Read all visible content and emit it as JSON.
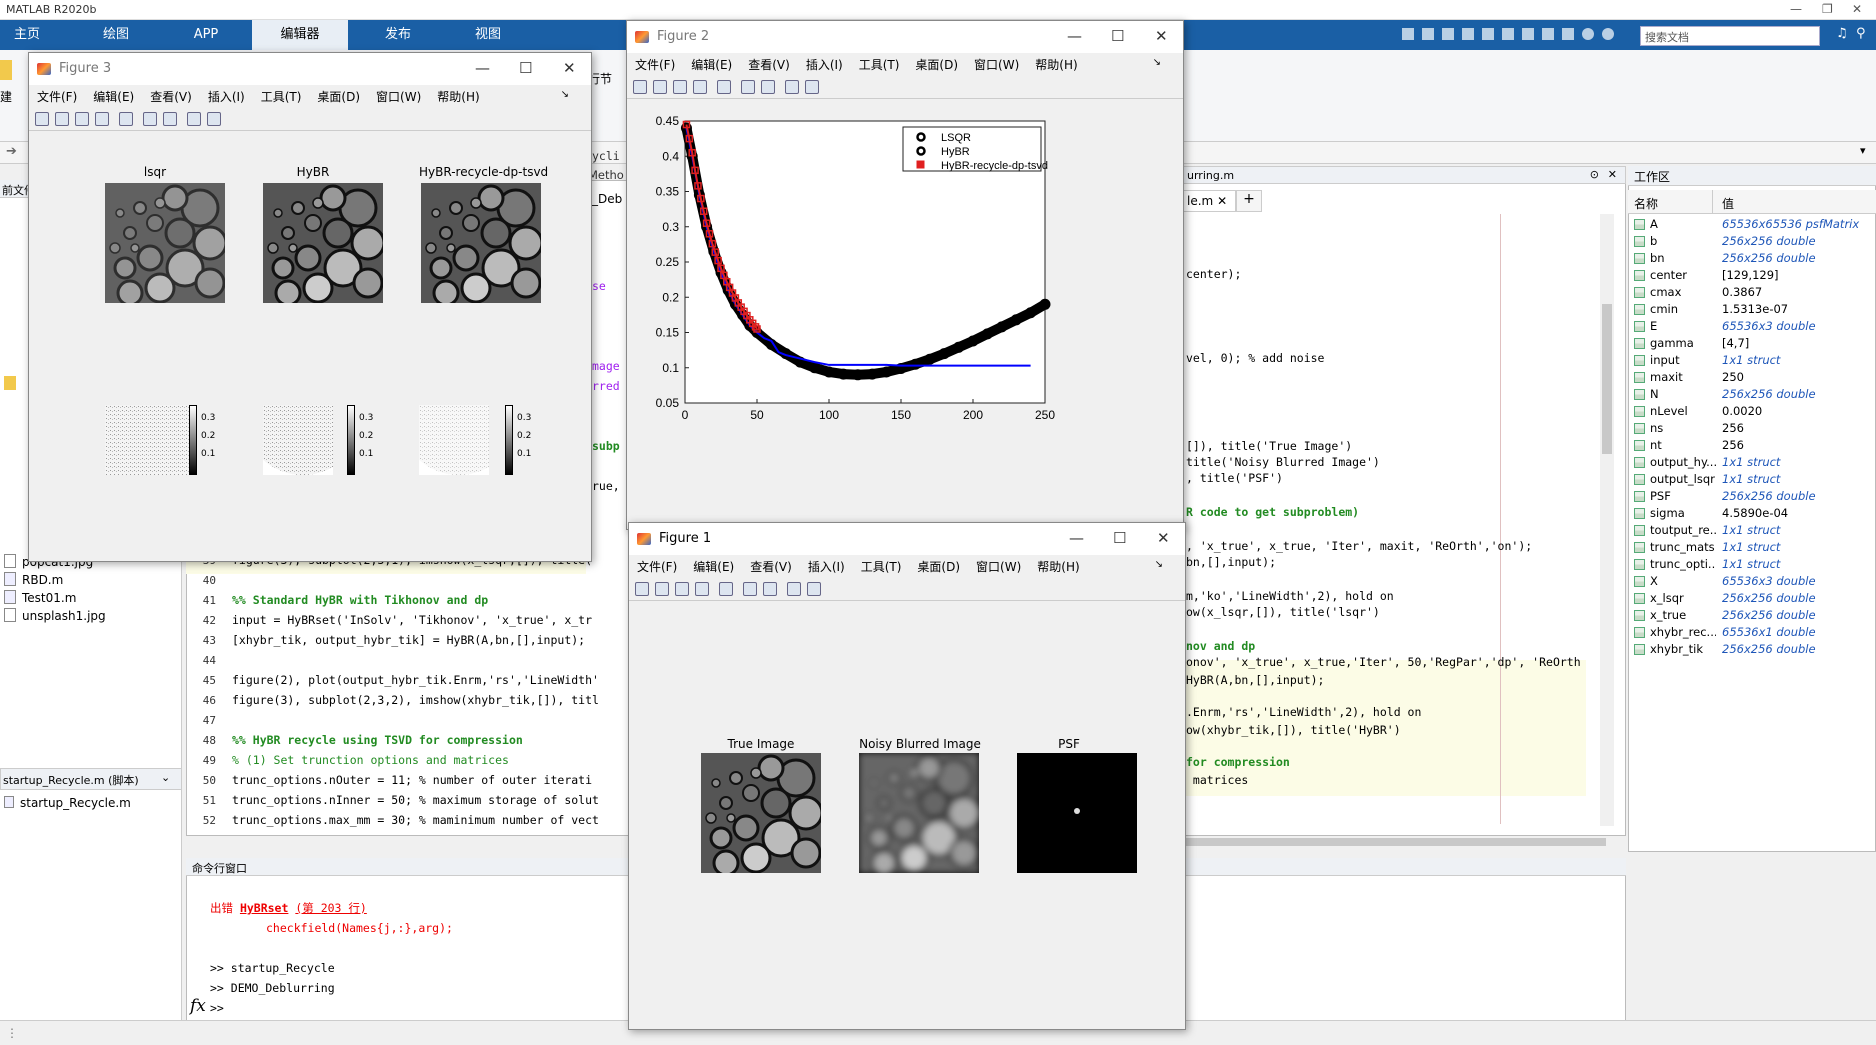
{
  "app": {
    "title": "MATLAB R2020b"
  },
  "ribbon": {
    "tabs": [
      "主页",
      "绘图",
      "APP",
      "编辑器",
      "发布",
      "视图"
    ],
    "search_placeholder": "搜索文档"
  },
  "files": {
    "items": [
      "popcat1.jpg",
      "RBD.m",
      "Test01.m",
      "unsplash1.jpg"
    ],
    "detail_label": "startup_Recycle.m (脚本)",
    "detail_file": "startup_Recycle.m"
  },
  "editor": {
    "tab_fragment": "urring.m",
    "tab_file": "le.m",
    "lines": [
      {
        "n": "39",
        "code": "figure(3), subplot(2,3,1), imshow(x_lsqr,[]), title("
      },
      {
        "n": "40",
        "code": ""
      },
      {
        "n": "41",
        "code": "%% Standard HyBR with Tikhonov and dp"
      },
      {
        "n": "42",
        "code": "input = HyBRset('InSolv', 'Tikhonov', 'x_true', x_tr"
      },
      {
        "n": "43",
        "code": "[xhybr_tik, output_hybr_tik] = HyBR(A,bn,[],input);"
      },
      {
        "n": "44",
        "code": ""
      },
      {
        "n": "45",
        "code": "figure(2), plot(output_hybr_tik.Enrm,'rs','LineWidth'"
      },
      {
        "n": "46",
        "code": "figure(3), subplot(2,3,2), imshow(xhybr_tik,[]), titl"
      },
      {
        "n": "47",
        "code": ""
      },
      {
        "n": "48",
        "code": "%% HyBR recycle using TSVD for compression"
      },
      {
        "n": "49",
        "code": "% (1) Set trunction options and matrices"
      },
      {
        "n": "50",
        "code": "trunc_options.nOuter = 11; % number of outer iterati"
      },
      {
        "n": "51",
        "code": "trunc_options.nInner = 50; % maximum storage of solut"
      },
      {
        "n": "52",
        "code": "trunc_options.max_mm = 30; % maminimum number of vect"
      }
    ],
    "right_fragments": [
      "center);",
      "vel, 0); % add noise",
      "[]), title('True Image')",
      "title('Noisy Blurred Image')",
      ", title('PSF')",
      "R code to get subproblem)",
      ", 'x_true', x_true, 'Iter', maxit, 'ReOrth','on');",
      "bn,[],input);",
      "m,'ko','LineWidth',2), hold on",
      "ow(x_lsqr,[]), title('lsqr')",
      "nov and dp",
      "onov', 'x_true', x_true,'Iter', 50,'RegPar','dp', 'ReOrth",
      "HyBR(A,bn,[],input);",
      ".Enrm,'rs','LineWidth',2), hold on",
      "ow(xhybr_tik,[]), title('HyBR')",
      "for compression",
      " matrices"
    ],
    "left_fragments": [
      "ycli",
      "Metho",
      "_Deb",
      "se",
      "mage",
      "rred",
      "subp",
      "rue,"
    ]
  },
  "command_window": {
    "header": "命令行窗口",
    "error_prefix": "出错 ",
    "error_func": "HyBRset",
    "error_line": "(第 203 行)",
    "error_detail": "checkfield(Names{j,:},arg);",
    "history": [
      ">> startup_Recycle",
      ">> DEMO_Deblurring"
    ],
    "prompt": ">>",
    "fx": "fx"
  },
  "workspace": {
    "title": "工作区",
    "col_name": "名称",
    "col_value": "值",
    "vars": [
      {
        "name": "A",
        "value": "65536x65536 psfMatrix",
        "italic": true
      },
      {
        "name": "b",
        "value": "256x256 double",
        "italic": true
      },
      {
        "name": "bn",
        "value": "256x256 double",
        "italic": true
      },
      {
        "name": "center",
        "value": "[129,129]",
        "italic": false
      },
      {
        "name": "cmax",
        "value": "0.3867",
        "italic": false
      },
      {
        "name": "cmin",
        "value": "1.5313e-07",
        "italic": false
      },
      {
        "name": "E",
        "value": "65536x3 double",
        "italic": true
      },
      {
        "name": "gamma",
        "value": "[4,7]",
        "italic": false
      },
      {
        "name": "input",
        "value": "1x1 struct",
        "italic": true
      },
      {
        "name": "maxit",
        "value": "250",
        "italic": false
      },
      {
        "name": "N",
        "value": "256x256 double",
        "italic": true
      },
      {
        "name": "nLevel",
        "value": "0.0020",
        "italic": false
      },
      {
        "name": "ns",
        "value": "256",
        "italic": false
      },
      {
        "name": "nt",
        "value": "256",
        "italic": false
      },
      {
        "name": "output_hy...",
        "value": "1x1 struct",
        "italic": true
      },
      {
        "name": "output_lsqr",
        "value": "1x1 struct",
        "italic": true
      },
      {
        "name": "PSF",
        "value": "256x256 double",
        "italic": true
      },
      {
        "name": "sigma",
        "value": "4.5890e-04",
        "italic": false
      },
      {
        "name": "toutput_re...",
        "value": "1x1 struct",
        "italic": true
      },
      {
        "name": "trunc_mats",
        "value": "1x1 struct",
        "italic": true
      },
      {
        "name": "trunc_opti...",
        "value": "1x1 struct",
        "italic": true
      },
      {
        "name": "X",
        "value": "65536x3 double",
        "italic": true
      },
      {
        "name": "x_lsqr",
        "value": "256x256 double",
        "italic": true
      },
      {
        "name": "x_true",
        "value": "256x256 double",
        "italic": true
      },
      {
        "name": "xhybr_rec...",
        "value": "65536x1 double",
        "italic": true
      },
      {
        "name": "xhybr_tik",
        "value": "256x256 double",
        "italic": true
      }
    ]
  },
  "figure_menu": [
    "文件(F)",
    "编辑(E)",
    "查看(V)",
    "插入(I)",
    "工具(T)",
    "桌面(D)",
    "窗口(W)",
    "帮助(H)"
  ],
  "figure3": {
    "title": "Figure 3",
    "subplot_titles": [
      "lsqr",
      "HyBR",
      "HyBR-recycle-dp-tsvd"
    ],
    "colorbar_ticks": [
      "0.3",
      "0.2",
      "0.1"
    ]
  },
  "figure2": {
    "title": "Figure 2"
  },
  "figure1": {
    "title": "Figure 1",
    "subplot_titles": [
      "True Image",
      "Noisy Blurred Image",
      "PSF"
    ]
  },
  "chart_data": {
    "type": "line",
    "xlim": [
      0,
      250
    ],
    "ylim": [
      0.05,
      0.45
    ],
    "xticks": [
      "0",
      "50",
      "100",
      "150",
      "200",
      "250"
    ],
    "yticks": [
      "0.05",
      "0.1",
      "0.15",
      "0.2",
      "0.25",
      "0.3",
      "0.35",
      "0.4",
      "0.45"
    ],
    "legend": {
      "position": "top-right",
      "entries": [
        "LSQR",
        "HyBR",
        "HyBR-recycle-dp-tsvd"
      ]
    },
    "series": [
      {
        "name": "LSQR",
        "marker": "circle",
        "color": "#000000",
        "x": [
          1,
          5,
          10,
          15,
          20,
          25,
          30,
          35,
          40,
          45,
          50,
          60,
          70,
          80,
          90,
          100,
          110,
          120,
          130,
          140,
          150,
          160,
          170,
          180,
          190,
          200,
          210,
          220,
          230,
          240,
          250
        ],
        "y": [
          0.44,
          0.4,
          0.345,
          0.3,
          0.265,
          0.235,
          0.21,
          0.19,
          0.175,
          0.16,
          0.15,
          0.133,
          0.12,
          0.108,
          0.1,
          0.094,
          0.091,
          0.09,
          0.091,
          0.094,
          0.099,
          0.105,
          0.112,
          0.12,
          0.129,
          0.138,
          0.148,
          0.158,
          0.168,
          0.178,
          0.19
        ]
      },
      {
        "name": "HyBR",
        "marker": "none",
        "color": "#0000ff",
        "x": [
          1,
          5,
          10,
          15,
          20,
          25,
          30,
          35,
          40,
          45,
          50,
          55,
          60,
          65,
          70,
          80,
          90,
          100,
          110,
          120,
          130,
          140,
          150,
          160,
          170,
          180,
          190,
          200,
          210,
          220,
          230,
          240
        ],
        "y": [
          0.44,
          0.4,
          0.345,
          0.3,
          0.265,
          0.235,
          0.21,
          0.19,
          0.175,
          0.16,
          0.15,
          0.142,
          0.138,
          0.122,
          0.118,
          0.113,
          0.108,
          0.104,
          0.104,
          0.104,
          0.104,
          0.104,
          0.103,
          0.103,
          0.103,
          0.103,
          0.103,
          0.103,
          0.103,
          0.103,
          0.103,
          0.103
        ]
      },
      {
        "name": "HyBR-recycle-dp-tsvd",
        "marker": "square",
        "color": "#e02020",
        "x": [
          1,
          3,
          5,
          7,
          9,
          11,
          13,
          15,
          17,
          19,
          21,
          23,
          25,
          27,
          29,
          31,
          33,
          35,
          37,
          39,
          41,
          43,
          45,
          47,
          49,
          50
        ],
        "y": [
          0.445,
          0.425,
          0.405,
          0.38,
          0.358,
          0.34,
          0.322,
          0.305,
          0.29,
          0.276,
          0.264,
          0.252,
          0.241,
          0.231,
          0.222,
          0.214,
          0.206,
          0.199,
          0.192,
          0.186,
          0.18,
          0.174,
          0.168,
          0.163,
          0.158,
          0.155
        ]
      }
    ]
  }
}
